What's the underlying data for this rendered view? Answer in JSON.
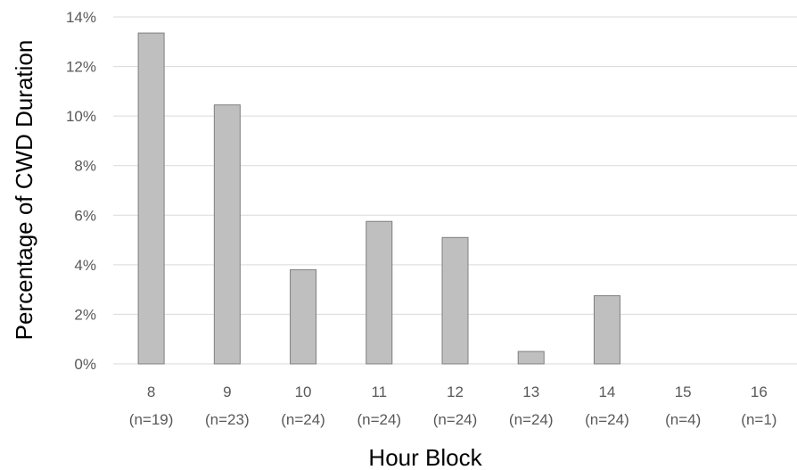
{
  "chart_data": {
    "type": "bar",
    "title": "",
    "xlabel": "Hour Block",
    "ylabel": "Percentage of CWD Duration",
    "categories": [
      "8",
      "9",
      "10",
      "11",
      "12",
      "13",
      "14",
      "15",
      "16"
    ],
    "category_sublabels": [
      "(n=19)",
      "(n=23)",
      "(n=24)",
      "(n=24)",
      "(n=24)",
      "(n=24)",
      "(n=24)",
      "(n=4)",
      "(n=1)"
    ],
    "values": [
      13.35,
      10.45,
      3.8,
      5.75,
      5.1,
      0.5,
      2.75,
      0,
      0
    ],
    "ylim": [
      0,
      14
    ],
    "yticks": [
      0,
      2,
      4,
      6,
      8,
      10,
      12,
      14
    ],
    "ytick_labels": [
      "0%",
      "2%",
      "4%",
      "6%",
      "8%",
      "10%",
      "12%",
      "14%"
    ],
    "grid": true,
    "colors": {
      "bar_fill": "#bfbfbf",
      "bar_stroke": "#7f7f7f",
      "grid": "#d9d9d9"
    }
  }
}
